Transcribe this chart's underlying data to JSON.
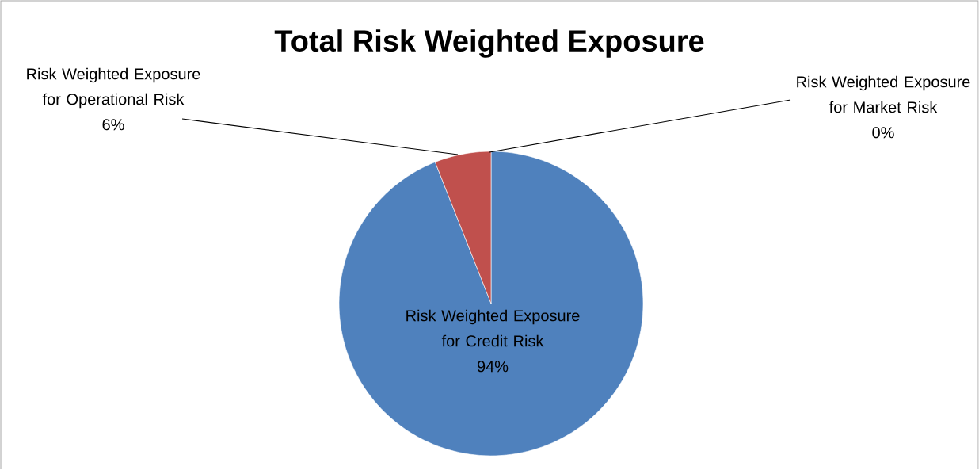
{
  "chart_data": {
    "type": "pie",
    "title": "Total Risk Weighted Exposure",
    "categories": [
      "Risk Weighted Exposure for Credit Risk",
      "Risk Weighted Exposure for Operational Risk",
      "Risk Weighted Exposure for Market Risk"
    ],
    "values": [
      94,
      6,
      0
    ],
    "colors": [
      "#4f81bd",
      "#c0504d",
      "#9bbb59"
    ],
    "value_labels": [
      "94%",
      "6%",
      "0%"
    ]
  }
}
